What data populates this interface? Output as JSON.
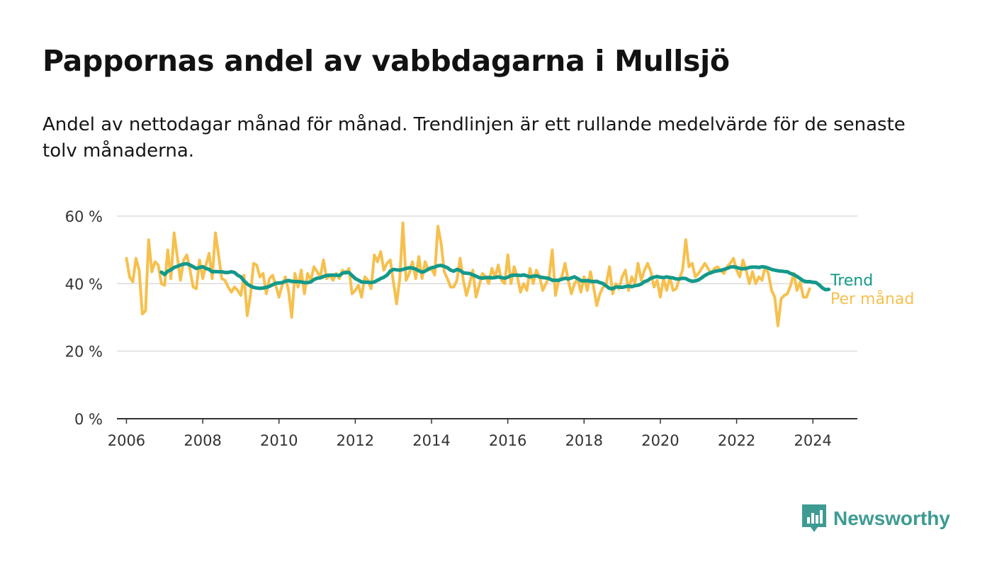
{
  "header": {
    "title": "Pappornas andel av vabbdagarna i Mullsjö",
    "subtitle": "Andel av nettodagar månad för månad. Trendlinjen är ett rullande medelvärde för de senaste tolv månaderna."
  },
  "brand": {
    "name": "Newsworthy",
    "icon": "newsworthy-logo-icon",
    "color": "#3d9b92"
  },
  "colors": {
    "trend": "#14998a",
    "monthly": "#f6c04e",
    "grid": "#dddddd",
    "axis": "#333333"
  },
  "chart_data": {
    "type": "line",
    "title": "Pappornas andel av vabbdagarna i Mullsjö",
    "subtitle": "Andel av nettodagar månad för månad. Trendlinjen är ett rullande medelvärde för de senaste tolv månaderna.",
    "x_ticks": [
      2006,
      2008,
      2010,
      2012,
      2014,
      2016,
      2018,
      2020,
      2022,
      2024
    ],
    "y_ticks": [
      {
        "value": 0,
        "label": "0 %"
      },
      {
        "value": 20,
        "label": "20 %"
      },
      {
        "value": 40,
        "label": "40 %"
      },
      {
        "value": 60,
        "label": "60 %"
      }
    ],
    "xlim": [
      "2005-10",
      "2025-03"
    ],
    "ylim": [
      0,
      60
    ],
    "grid": true,
    "legend": "line-end labels",
    "series": [
      {
        "name": "Per månad",
        "color": "#f6c04e",
        "start": "2006-01",
        "values": [
          47.5,
          42,
          40.5,
          47.5,
          44,
          31,
          32,
          53,
          43.5,
          46.5,
          45.5,
          40,
          39.5,
          50,
          41.5,
          55,
          48,
          41,
          47,
          48.5,
          44,
          39,
          38.5,
          47,
          41.5,
          45.5,
          49,
          41.5,
          55,
          48.5,
          41.5,
          41,
          39,
          37.5,
          39,
          38,
          36.5,
          42.5,
          30.5,
          36.5,
          46,
          45.5,
          42,
          43,
          37,
          41.5,
          42.5,
          39.5,
          36,
          39.5,
          42,
          38,
          30,
          43,
          39,
          44,
          37,
          43,
          41,
          45,
          43.5,
          42,
          47,
          41.5,
          42.5,
          41,
          43,
          41.5,
          44,
          43,
          44.5,
          37,
          38,
          39.5,
          36,
          42,
          41,
          38.5,
          48.5,
          46.5,
          49.5,
          44,
          46,
          47,
          40.5,
          34,
          41.5,
          58,
          41,
          43,
          46.5,
          41.5,
          48,
          41.5,
          46.5,
          44,
          44.5,
          42.5,
          57,
          52,
          43.5,
          41.5,
          39,
          39,
          41,
          47.5,
          41,
          36.5,
          40,
          44,
          36,
          39.5,
          43,
          42,
          40,
          44.5,
          42,
          45.5,
          41,
          40,
          48.5,
          40,
          45,
          42,
          37.5,
          40,
          38,
          44.5,
          40,
          44,
          42,
          38,
          40,
          42,
          50,
          36.5,
          41,
          42,
          46,
          41,
          37,
          40,
          41.5,
          37.5,
          42,
          38,
          43.5,
          39,
          33.5,
          37,
          39,
          40,
          45,
          37,
          40,
          38.5,
          42,
          44,
          38,
          42,
          40,
          46,
          41,
          44,
          46,
          43.5,
          39,
          41,
          36,
          41.5,
          38,
          42,
          38,
          38.5,
          41.5,
          44,
          53,
          45,
          46,
          42,
          43,
          44.5,
          46,
          44.5,
          43,
          44.5,
          45,
          44,
          43,
          45,
          46,
          47.5,
          44,
          42,
          47,
          44,
          40,
          43.5,
          40,
          42,
          41,
          45,
          43,
          38,
          36,
          27.5,
          35.5,
          36.5,
          37,
          39.5,
          43,
          38,
          40.5,
          36,
          36,
          38.5
        ]
      },
      {
        "name": "Trend",
        "color": "#14998a",
        "start": "2006-12",
        "values": [
          43.4,
          42.7,
          43.7,
          44.1,
          44.8,
          45.1,
          45.5,
          45.8,
          45.9,
          45.5,
          45.0,
          44.5,
          44.8,
          45.0,
          44.5,
          44.2,
          43.5,
          43.6,
          43.5,
          43.5,
          43.3,
          43.3,
          43.5,
          43.3,
          42.5,
          42.0,
          40.8,
          39.9,
          39.3,
          38.9,
          38.7,
          38.6,
          38.7,
          38.9,
          39.2,
          39.7,
          40.1,
          40.2,
          40.3,
          40.7,
          40.9,
          40.7,
          40.6,
          40.6,
          40.5,
          40.3,
          40.3,
          40.5,
          41.2,
          41.6,
          41.7,
          42.1,
          42.4,
          42.5,
          42.5,
          42.5,
          42.4,
          43.1,
          43.3,
          43.3,
          42.4,
          41.5,
          41.0,
          40.5,
          40.4,
          40.4,
          40.3,
          40.5,
          41.0,
          41.5,
          41.9,
          42.5,
          43.7,
          44.2,
          44.1,
          44.0,
          44.2,
          44.5,
          44.7,
          44.6,
          44.3,
          43.8,
          43.4,
          43.7,
          44.3,
          44.7,
          44.9,
          45.3,
          45.4,
          45.1,
          44.7,
          44.0,
          43.7,
          44.2,
          43.9,
          43.2,
          43.1,
          43.0,
          42.6,
          42.2,
          41.8,
          41.6,
          41.8,
          41.8,
          41.7,
          41.8,
          42.0,
          41.8,
          41.6,
          41.9,
          42.4,
          42.5,
          42.5,
          42.4,
          42.6,
          42.3,
          42.0,
          42.2,
          42.3,
          42.0,
          41.8,
          41.7,
          41.5,
          41.0,
          41.0,
          41.0,
          41.3,
          41.6,
          41.4,
          41.7,
          42.0,
          41.5,
          40.9,
          40.8,
          40.9,
          40.7,
          40.6,
          40.7,
          40.3,
          40.0,
          39.3,
          38.6,
          38.5,
          39.0,
          39.0,
          38.9,
          39.1,
          39.3,
          39.1,
          39.4,
          39.5,
          39.9,
          40.6,
          40.9,
          41.6,
          41.9,
          42.1,
          41.9,
          41.8,
          42.0,
          41.8,
          41.7,
          41.4,
          41.4,
          41.6,
          41.5,
          41.0,
          40.7,
          40.8,
          41.1,
          41.7,
          42.4,
          42.9,
          43.3,
          43.6,
          43.8,
          43.9,
          44.2,
          44.5,
          44.9,
          45.0,
          44.8,
          44.5,
          44.4,
          44.5,
          44.8,
          44.9,
          44.9,
          44.8,
          45.0,
          44.9,
          44.6,
          44.2,
          44.0,
          43.8,
          43.7,
          43.6,
          43.5,
          43.0,
          42.7,
          42.1,
          41.5,
          40.8,
          40.6,
          40.6,
          40.4,
          40.3,
          39.6,
          38.7,
          38.2,
          38.3
        ]
      }
    ]
  }
}
